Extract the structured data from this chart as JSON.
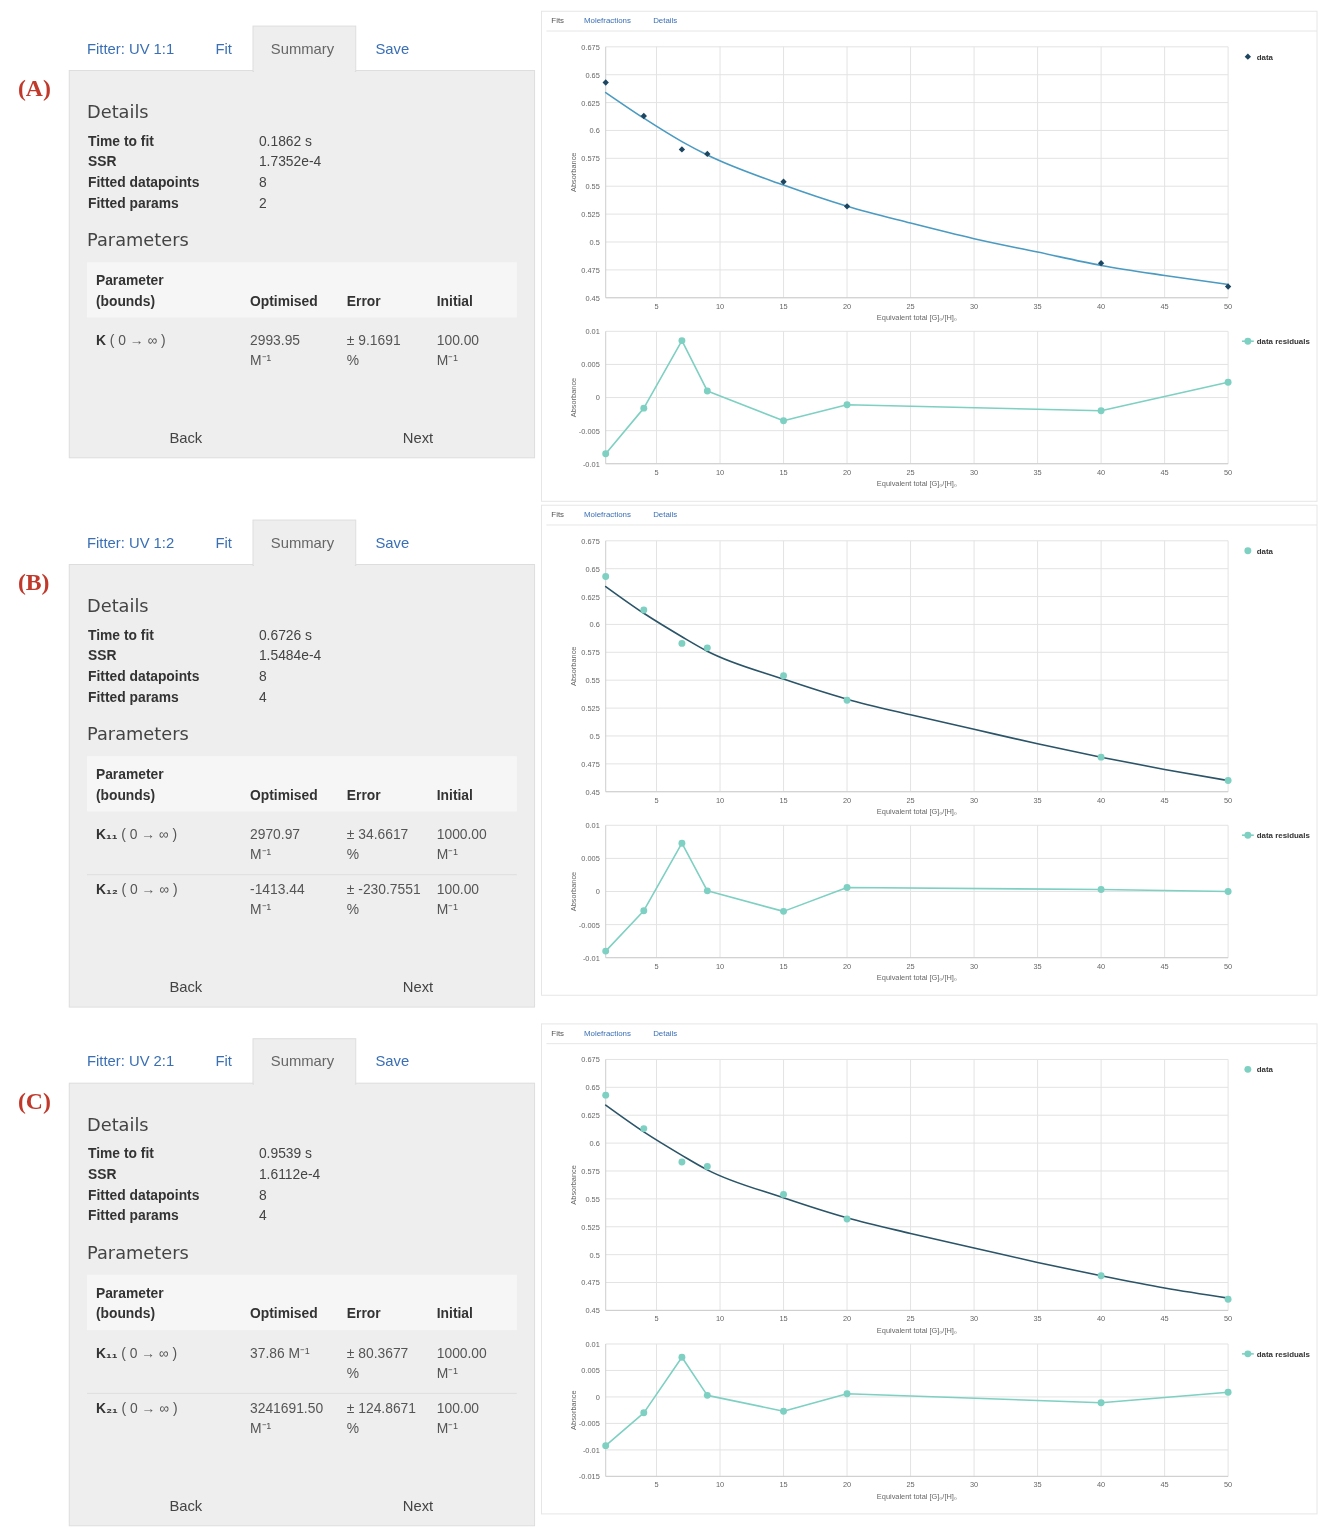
{
  "chart_data": [
    {
      "type": "other",
      "title": "(A)",
      "annotations": [
        "Fitter: UV 1:1",
        "Fit",
        "Summary",
        "Save",
        "Details",
        "Time to fit",
        "0.1862 s",
        "SSR",
        "1.7352e-4",
        "Fitted datapoints",
        "8",
        "Fitted params",
        "2",
        "Parameters",
        "Parameter\n(bounds)",
        "Optimised",
        "Error",
        "Initial",
        "K ( 0 → ∞ )",
        "2993.95\nM⁻¹",
        "± 9.1691\n%",
        "100.00\nM⁻¹",
        "Back",
        "Next"
      ]
    },
    {
      "type": "scatter",
      "annotations": [
        "Fits",
        "Molefractions",
        "Details"
      ],
      "xlabel": "Equivalent total [G]₀/[H]₀",
      "ylabel": "Absorbance",
      "x": [
        1,
        4,
        7,
        9,
        15,
        20,
        40,
        50
      ],
      "xlim": [
        1,
        50
      ],
      "xticks": [
        5,
        10,
        15,
        20,
        25,
        30,
        35,
        40,
        45,
        50
      ],
      "ylim": [
        0.45,
        0.675
      ],
      "yticks": [
        0.45,
        0.475,
        0.5,
        0.525,
        0.55,
        0.575,
        0.6,
        0.625,
        0.65,
        0.675
      ],
      "grid": true,
      "legend": "right",
      "series": [
        {
          "name": "data",
          "type": "scatter",
          "marker": "diamond",
          "color": "#1d4660",
          "values": [
            0.643,
            0.613,
            0.583,
            0.579,
            0.554,
            0.532,
            0.481,
            0.46
          ]
        },
        {
          "type": "line",
          "marker": "none",
          "color": "#4a9ac2",
          "x": [
            1,
            4,
            7,
            9,
            15,
            20,
            25,
            30,
            35,
            40,
            45,
            50
          ],
          "values": [
            0.634,
            0.611,
            0.59,
            0.578,
            0.551,
            0.532,
            0.517,
            0.503,
            0.491,
            0.479,
            0.47,
            0.462
          ]
        }
      ]
    },
    {
      "type": "line",
      "xlabel": "Equivalent total [G]₀/[H]₀",
      "ylabel": "Absorbance",
      "x": [
        1,
        4,
        7,
        9,
        15,
        20,
        40,
        50
      ],
      "xlim": [
        1,
        50
      ],
      "xticks": [
        5,
        10,
        15,
        20,
        25,
        30,
        35,
        40,
        45,
        50
      ],
      "ylim": [
        -0.01,
        0.01
      ],
      "yticks": [
        -0.01,
        -0.005,
        0,
        0.005,
        0.01
      ],
      "grid": true,
      "legend": "right",
      "series": [
        {
          "name": "data residuals",
          "type": "line",
          "marker": "circle",
          "color": "#7dd0c2",
          "values": [
            -0.0085,
            -0.0016,
            0.0086,
            0.001,
            -0.0035,
            -0.0011,
            -0.002,
            0.0023
          ]
        }
      ]
    },
    {
      "type": "other",
      "title": "(B)",
      "annotations": [
        "Fitter: UV 1:2",
        "Fit",
        "Summary",
        "Save",
        "Details",
        "Time to fit",
        "0.6726 s",
        "SSR",
        "1.5484e-4",
        "Fitted datapoints",
        "8",
        "Fitted params",
        "4",
        "Parameters",
        "Parameter\n(bounds)",
        "Optimised",
        "Error",
        "Initial",
        "K₁₁ ( 0 → ∞ )",
        "2970.97\nM⁻¹",
        "± 34.6617\n%",
        "1000.00\nM⁻¹",
        "K₁₂ ( 0 → ∞ )",
        "-1413.44\nM⁻¹",
        "± -230.7551\n%",
        "100.00\nM⁻¹",
        "Back",
        "Next"
      ]
    },
    {
      "type": "scatter",
      "annotations": [
        "Fits",
        "Molefractions",
        "Details"
      ],
      "xlabel": "Equivalent total [G]₀/[H]₀",
      "ylabel": "Absorbance",
      "x": [
        1,
        4,
        7,
        9,
        15,
        20,
        40,
        50
      ],
      "xlim": [
        1,
        50
      ],
      "xticks": [
        5,
        10,
        15,
        20,
        25,
        30,
        35,
        40,
        45,
        50
      ],
      "ylim": [
        0.45,
        0.675
      ],
      "yticks": [
        0.45,
        0.475,
        0.5,
        0.525,
        0.55,
        0.575,
        0.6,
        0.625,
        0.65,
        0.675
      ],
      "grid": true,
      "legend": "right",
      "series": [
        {
          "name": "data",
          "type": "scatter",
          "marker": "circle",
          "color": "#7dd0c2",
          "values": [
            0.643,
            0.613,
            0.583,
            0.579,
            0.554,
            0.532,
            0.481,
            0.46
          ]
        },
        {
          "type": "line",
          "marker": "none",
          "color": "#2a5467",
          "x": [
            1,
            4,
            7,
            9,
            15,
            20,
            25,
            30,
            35,
            40,
            45,
            50
          ],
          "values": [
            0.634,
            0.61,
            0.589,
            0.576,
            0.551,
            0.533,
            0.519,
            0.506,
            0.493,
            0.481,
            0.47,
            0.46
          ]
        }
      ]
    },
    {
      "type": "line",
      "xlabel": "Equivalent total [G]₀/[H]₀",
      "ylabel": "Absorbance",
      "x": [
        1,
        4,
        7,
        9,
        15,
        20,
        40,
        50
      ],
      "xlim": [
        1,
        50
      ],
      "xticks": [
        5,
        10,
        15,
        20,
        25,
        30,
        35,
        40,
        45,
        50
      ],
      "ylim": [
        -0.01,
        0.01
      ],
      "yticks": [
        -0.01,
        -0.005,
        0,
        0.005,
        0.01
      ],
      "grid": true,
      "legend": "right",
      "series": [
        {
          "name": "data residuals",
          "type": "line",
          "marker": "circle",
          "color": "#7dd0c2",
          "values": [
            -0.009,
            -0.0029,
            0.0073,
            0.0001,
            -0.003,
            0.0006,
            0.0003,
            0.0
          ]
        }
      ]
    },
    {
      "type": "other",
      "title": "(C)",
      "annotations": [
        "Fitter: UV 2:1",
        "Fit",
        "Summary",
        "Save",
        "Details",
        "Time to fit",
        "0.9539 s",
        "SSR",
        "1.6112e-4",
        "Fitted datapoints",
        "8",
        "Fitted params",
        "4",
        "Parameters",
        "Parameter\n(bounds)",
        "Optimised",
        "Error",
        "Initial",
        "K₁₁ ( 0 → ∞ )",
        "37.86 M⁻¹",
        "± 80.3677\n%",
        "1000.00\nM⁻¹",
        "K₂₁ ( 0 → ∞ )",
        "3241691.50\nM⁻¹",
        "± 124.8671\n%",
        "100.00\nM⁻¹",
        "Back",
        "Next"
      ]
    },
    {
      "type": "scatter",
      "annotations": [
        "Fits",
        "Molefractions",
        "Details"
      ],
      "xlabel": "Equivalent total [G]₀/[H]₀",
      "ylabel": "Absorbance",
      "x": [
        1,
        4,
        7,
        9,
        15,
        20,
        40,
        50
      ],
      "xlim": [
        1,
        50
      ],
      "xticks": [
        5,
        10,
        15,
        20,
        25,
        30,
        35,
        40,
        45,
        50
      ],
      "ylim": [
        0.45,
        0.675
      ],
      "yticks": [
        0.45,
        0.475,
        0.5,
        0.525,
        0.55,
        0.575,
        0.6,
        0.625,
        0.65,
        0.675
      ],
      "grid": true,
      "legend": "right",
      "series": [
        {
          "name": "data",
          "type": "scatter",
          "marker": "circle",
          "color": "#7dd0c2",
          "values": [
            0.643,
            0.613,
            0.583,
            0.579,
            0.554,
            0.532,
            0.481,
            0.46
          ]
        },
        {
          "type": "line",
          "marker": "none",
          "color": "#2a5467",
          "x": [
            1,
            4,
            7,
            9,
            15,
            20,
            25,
            30,
            35,
            40,
            45,
            50
          ],
          "values": [
            0.634,
            0.61,
            0.589,
            0.576,
            0.551,
            0.533,
            0.519,
            0.506,
            0.493,
            0.481,
            0.47,
            0.461
          ]
        }
      ]
    },
    {
      "type": "line",
      "xlabel": "Equivalent total [G]₀/[H]₀",
      "ylabel": "Absorbance",
      "x": [
        1,
        4,
        7,
        9,
        15,
        20,
        40,
        50
      ],
      "xlim": [
        1,
        50
      ],
      "xticks": [
        5,
        10,
        15,
        20,
        25,
        30,
        35,
        40,
        45,
        50
      ],
      "ylim": [
        -0.015,
        0.01
      ],
      "yticks": [
        -0.015,
        -0.01,
        -0.005,
        0,
        0.005,
        0.01
      ],
      "grid": true,
      "legend": "right",
      "series": [
        {
          "name": "data residuals",
          "type": "line",
          "marker": "circle",
          "color": "#7dd0c2",
          "values": [
            -0.0092,
            -0.003,
            0.0075,
            0.0003,
            -0.0027,
            0.0006,
            -0.0011,
            0.0009
          ]
        }
      ]
    }
  ]
}
